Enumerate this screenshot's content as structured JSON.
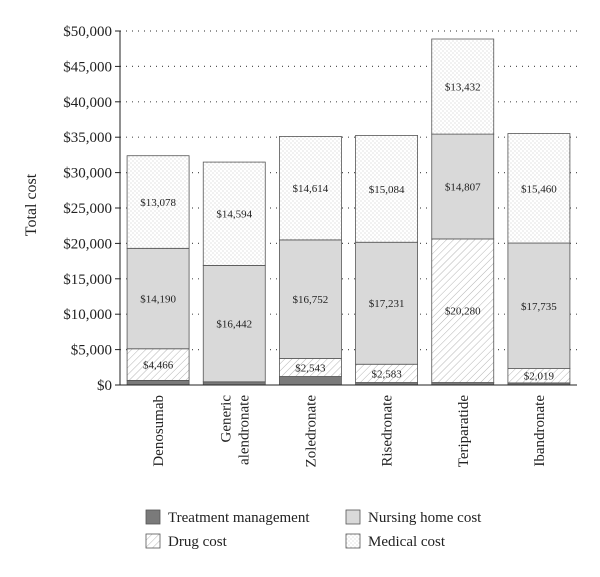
{
  "chart_data": {
    "type": "bar",
    "stacked": true,
    "title": "",
    "xlabel": "",
    "ylabel": "Total cost",
    "ylim": [
      0,
      50000
    ],
    "yticks": [
      0,
      5000,
      10000,
      15000,
      20000,
      25000,
      30000,
      35000,
      40000,
      45000,
      50000
    ],
    "ytick_labels": [
      "$0",
      "$5,000",
      "$10,000",
      "$15,000",
      "$20,000",
      "$25,000",
      "$30,000",
      "$35,000",
      "$40,000",
      "$45,000",
      "$50,000"
    ],
    "grid": "horizontal dotted",
    "legend_position": "bottom",
    "categories": [
      [
        "Denosumab"
      ],
      [
        "Generic",
        "alendronate"
      ],
      [
        "Zoledronate"
      ],
      [
        "Risedronate"
      ],
      [
        "Teriparatide"
      ],
      [
        "Ibandronate"
      ]
    ],
    "series": [
      {
        "name": "Treatment management",
        "pattern": "solid-dark",
        "color": "#7a7a7a",
        "values": [
          650,
          450,
          1200,
          350,
          350,
          300
        ],
        "labels": [
          "",
          "",
          "",
          "",
          "",
          ""
        ]
      },
      {
        "name": "Drug cost",
        "pattern": "diagonal-hatch",
        "color": "#ffffff",
        "values": [
          4466,
          0,
          2543,
          2583,
          20280,
          2019
        ],
        "labels": [
          "$4,466",
          "",
          "$2,543",
          "$2,583",
          "$20,280",
          "$2,019"
        ]
      },
      {
        "name": "Nursing home cost",
        "pattern": "light-gray",
        "color": "#d9d9d9",
        "values": [
          14190,
          16442,
          16752,
          17231,
          14807,
          17735
        ],
        "labels": [
          "$14,190",
          "$16,442",
          "$16,752",
          "$17,231",
          "$14,807",
          "$17,735"
        ]
      },
      {
        "name": "Medical cost",
        "pattern": "fine-dots",
        "color": "#ffffff",
        "values": [
          13078,
          14594,
          14614,
          15084,
          13432,
          15460
        ],
        "labels": [
          "$13,078",
          "$14,594",
          "$14,614",
          "$15,084",
          "$13,432",
          "$15,460"
        ]
      }
    ]
  },
  "legend": [
    {
      "name": "Treatment management",
      "pattern": "solid-dark"
    },
    {
      "name": "Nursing home cost",
      "pattern": "light-gray"
    },
    {
      "name": "Drug cost",
      "pattern": "diagonal-hatch"
    },
    {
      "name": "Medical cost",
      "pattern": "fine-dots"
    }
  ]
}
